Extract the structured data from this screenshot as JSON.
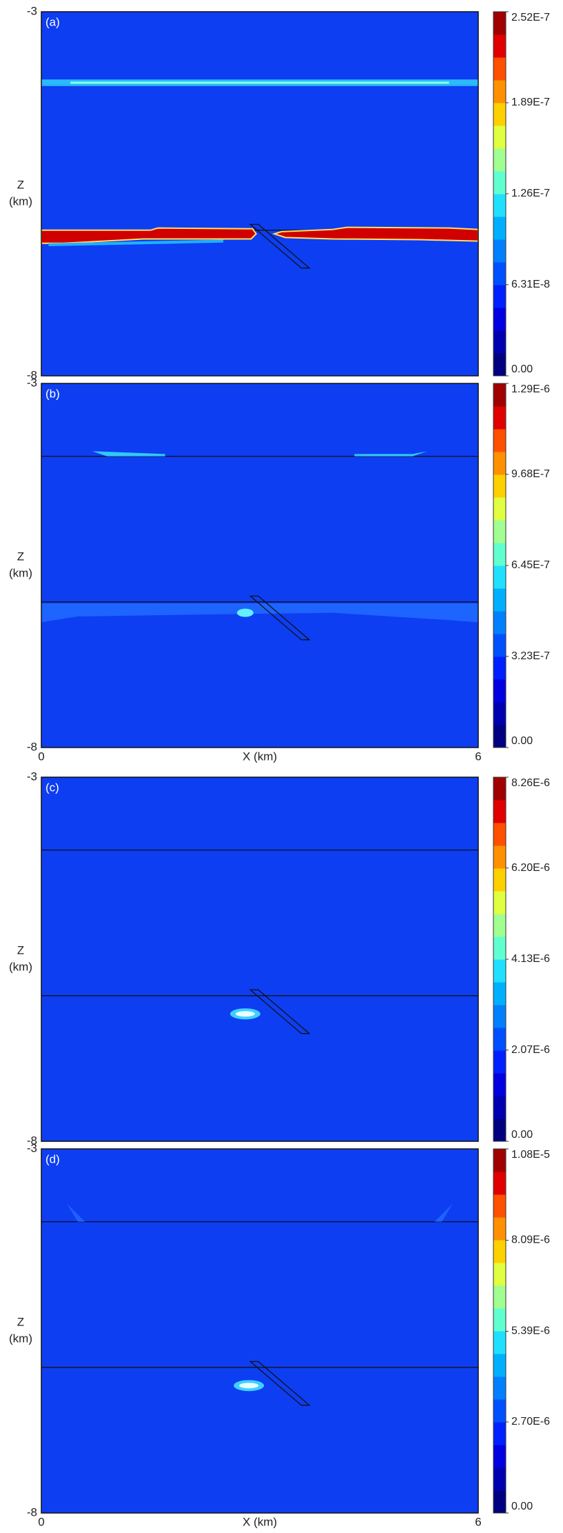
{
  "chart_data": [
    {
      "type": "contour",
      "panel_label": "(a)",
      "ylabel": [
        "Z",
        "(km)"
      ],
      "xlim": [
        0,
        6
      ],
      "ylim": [
        -8,
        -3
      ],
      "yticks": [
        -8,
        -3
      ],
      "colorbar": {
        "lim": [
          0,
          2.52e-07
        ],
        "ticks": [
          {
            "value": 0,
            "label": "0.00"
          },
          {
            "value": 6.31e-08,
            "label": "6.31E-8"
          },
          {
            "value": 1.26e-07,
            "label": "1.26E-7"
          },
          {
            "value": 1.89e-07,
            "label": "1.89E-7"
          },
          {
            "value": 2.52e-07,
            "label": "2.52E-7"
          }
        ],
        "colors": [
          "#000080",
          "#0000b0",
          "#0000e0",
          "#0020ff",
          "#0050ff",
          "#0080ff",
          "#00b0ff",
          "#20e0ff",
          "#60ffd0",
          "#a0ff90",
          "#e0ff40",
          "#ffd000",
          "#ff9000",
          "#ff5000",
          "#e00000",
          "#a00000"
        ]
      }
    },
    {
      "type": "contour",
      "panel_label": "(b)",
      "ylabel": [
        "Z",
        "(km)"
      ],
      "xlabel": "X (km)",
      "xlim": [
        0,
        6
      ],
      "xticks": [
        0,
        6
      ],
      "ylim": [
        -8,
        -3
      ],
      "yticks": [
        -8,
        -3
      ],
      "colorbar": {
        "lim": [
          0,
          1.29e-06
        ],
        "ticks": [
          {
            "value": 0,
            "label": "0.00"
          },
          {
            "value": 3.23e-07,
            "label": "3.23E-7"
          },
          {
            "value": 6.45e-07,
            "label": "6.45E-7"
          },
          {
            "value": 9.68e-07,
            "label": "9.68E-7"
          },
          {
            "value": 1.29e-06,
            "label": "1.29E-6"
          }
        ],
        "colors": [
          "#000080",
          "#0000b0",
          "#0000e0",
          "#0020ff",
          "#0050ff",
          "#0080ff",
          "#00b0ff",
          "#20e0ff",
          "#60ffd0",
          "#a0ff90",
          "#e0ff40",
          "#ffd000",
          "#ff9000",
          "#ff5000",
          "#e00000",
          "#a00000"
        ]
      }
    },
    {
      "type": "contour",
      "panel_label": "(c)",
      "ylabel": [
        "Z",
        "(km)"
      ],
      "xlim": [
        0,
        6
      ],
      "ylim": [
        -8,
        -3
      ],
      "yticks": [
        -8,
        -3
      ],
      "colorbar": {
        "lim": [
          0,
          8.26e-06
        ],
        "ticks": [
          {
            "value": 0,
            "label": "0.00"
          },
          {
            "value": 2.07e-06,
            "label": "2.07E-6"
          },
          {
            "value": 4.13e-06,
            "label": "4.13E-6"
          },
          {
            "value": 6.2e-06,
            "label": "6.20E-6"
          },
          {
            "value": 8.26e-06,
            "label": "8.26E-6"
          }
        ],
        "colors": [
          "#000080",
          "#0000b0",
          "#0000e0",
          "#0020ff",
          "#0050ff",
          "#0080ff",
          "#00b0ff",
          "#20e0ff",
          "#60ffd0",
          "#a0ff90",
          "#e0ff40",
          "#ffd000",
          "#ff9000",
          "#ff5000",
          "#e00000",
          "#a00000"
        ]
      }
    },
    {
      "type": "contour",
      "panel_label": "(d)",
      "ylabel": [
        "Z",
        "(km)"
      ],
      "xlabel": "X (km)",
      "xlim": [
        0,
        6
      ],
      "xticks": [
        0,
        6
      ],
      "ylim": [
        -8,
        -3
      ],
      "yticks": [
        -8,
        -3
      ],
      "colorbar": {
        "lim": [
          0,
          1.08e-05
        ],
        "ticks": [
          {
            "value": 0,
            "label": "0.00"
          },
          {
            "value": 2.7e-06,
            "label": "2.70E-6"
          },
          {
            "value": 5.39e-06,
            "label": "5.39E-6"
          },
          {
            "value": 8.09e-06,
            "label": "8.09E-6"
          },
          {
            "value": 1.08e-05,
            "label": "1.08E-5"
          }
        ],
        "colors": [
          "#000080",
          "#0000b0",
          "#0000e0",
          "#0020ff",
          "#0050ff",
          "#0080ff",
          "#00b0ff",
          "#20e0ff",
          "#60ffd0",
          "#a0ff90",
          "#e0ff40",
          "#ffd000",
          "#ff9000",
          "#ff5000",
          "#e00000",
          "#a00000"
        ]
      }
    }
  ]
}
